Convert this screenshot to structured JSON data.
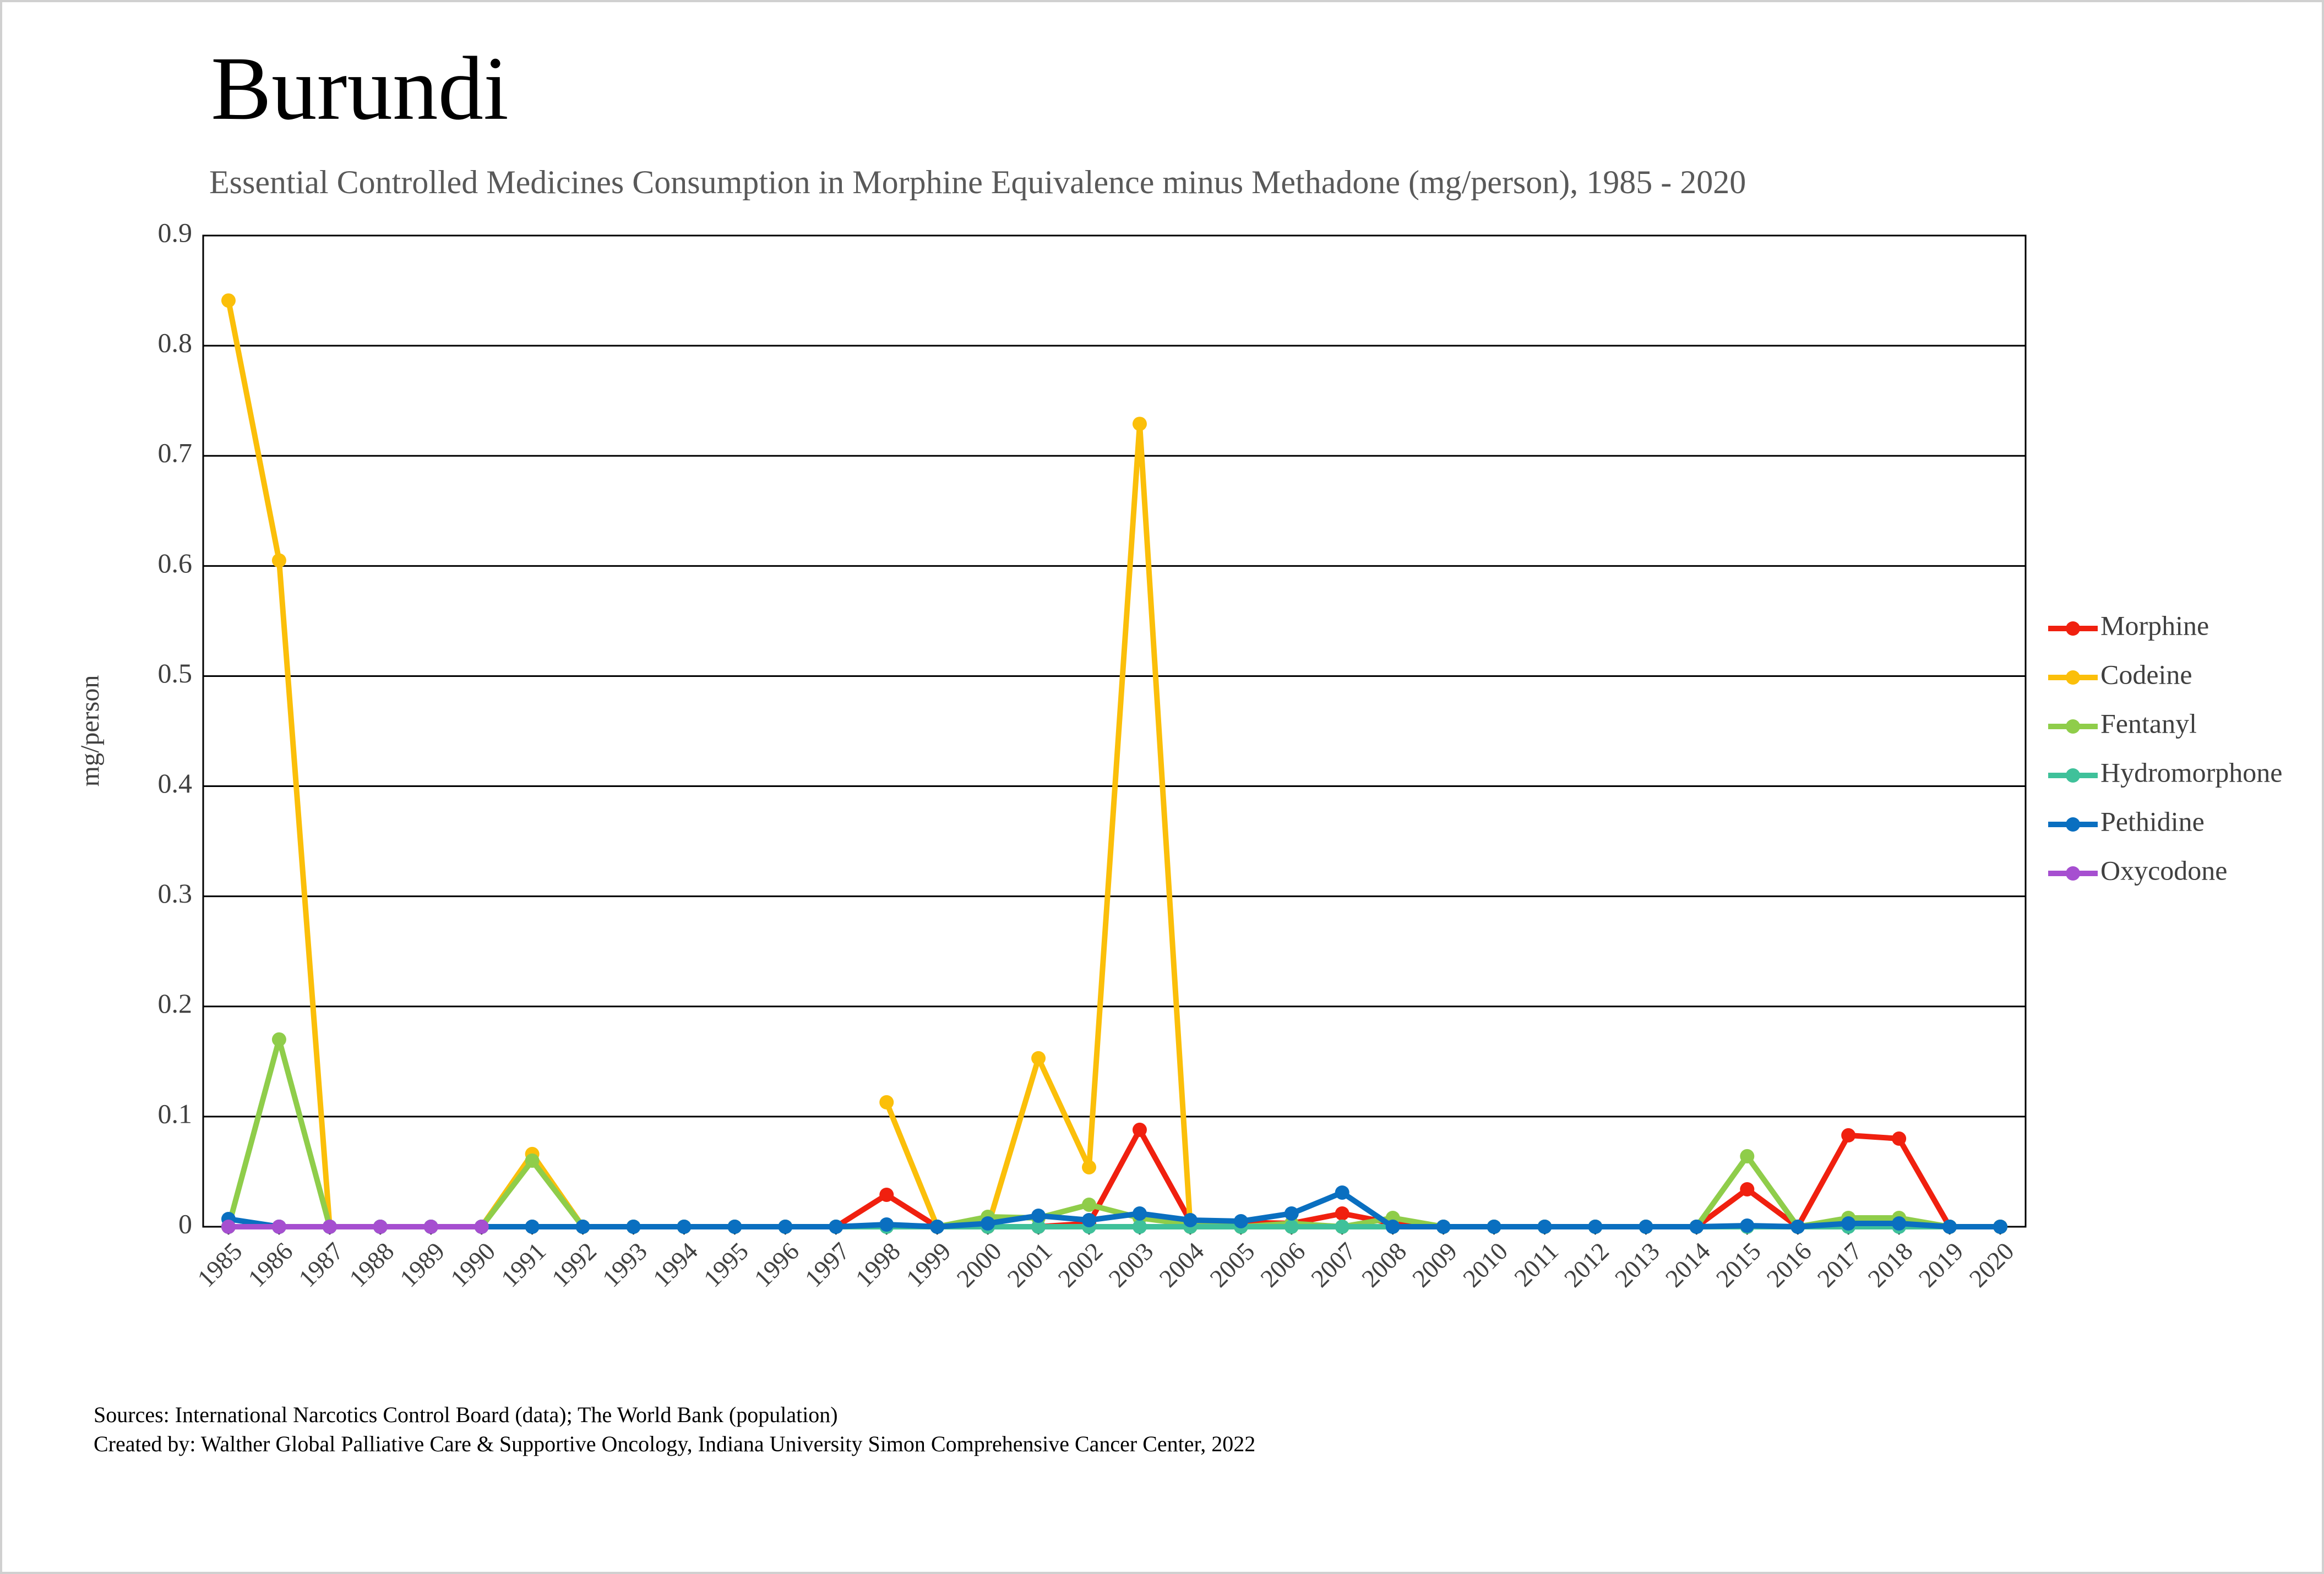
{
  "chart_data": {
    "type": "line",
    "title": "Burundi",
    "subtitle": "Essential Controlled Medicines Consumption in Morphine Equivalence minus Methadone (mg/person), 1985 - 2020",
    "y_label": "mg/person",
    "categories": [
      "1985",
      "1986",
      "1987",
      "1988",
      "1989",
      "1990",
      "1991",
      "1992",
      "1993",
      "1994",
      "1995",
      "1996",
      "1997",
      "1998",
      "1999",
      "2000",
      "2001",
      "2002",
      "2003",
      "2004",
      "2005",
      "2006",
      "2007",
      "2008",
      "2009",
      "2010",
      "2011",
      "2012",
      "2013",
      "2014",
      "2015",
      "2016",
      "2017",
      "2018",
      "2019",
      "2020"
    ],
    "series": [
      {
        "name": "Morphine",
        "color": "#f0200f",
        "values": [
          0,
          0,
          0,
          0,
          0,
          0,
          0,
          0,
          0,
          0,
          0,
          0,
          0,
          0.029,
          0,
          0,
          0,
          0.003,
          0.088,
          0.005,
          0.004,
          0.003,
          0.012,
          0.003,
          0,
          0,
          0,
          0,
          0,
          0,
          0.034,
          0,
          0.083,
          0.08,
          0,
          0
        ]
      },
      {
        "name": "Codeine",
        "color": "#fbbf0a",
        "values": [
          0.841,
          0.605,
          0,
          0,
          0,
          0,
          0.066,
          0,
          null,
          null,
          null,
          null,
          null,
          0.113,
          0,
          0,
          0.153,
          0.054,
          0.729,
          0,
          0,
          0,
          0,
          0,
          0,
          0,
          0,
          0,
          0,
          0,
          0,
          0,
          0.001,
          0.001,
          0,
          0
        ]
      },
      {
        "name": "Fentanyl",
        "color": "#8fcd4a",
        "values": [
          0,
          0.17,
          0,
          0,
          0,
          0,
          0.06,
          0,
          0,
          0,
          0,
          0,
          0,
          0,
          0,
          0.009,
          0.008,
          0.02,
          0.008,
          0.002,
          0,
          0.003,
          0,
          0.008,
          0,
          0,
          0,
          0,
          0,
          0,
          0.064,
          0,
          0.008,
          0.008,
          0,
          0
        ]
      },
      {
        "name": "Hydromorphone",
        "color": "#3fc19a",
        "values": [
          0,
          0,
          0,
          0,
          0,
          0,
          0,
          0,
          0,
          0,
          0,
          0,
          0,
          0,
          0,
          0,
          0,
          0,
          0,
          0,
          0,
          0,
          0,
          0,
          0,
          0,
          0,
          0,
          0,
          0,
          0,
          0,
          0,
          0,
          0,
          0
        ]
      },
      {
        "name": "Pethidine",
        "color": "#0a6fc0",
        "values": [
          0.007,
          0,
          0,
          0,
          0,
          0,
          0,
          0,
          0,
          0,
          0,
          0,
          0,
          0.002,
          0,
          0.003,
          0.01,
          0.006,
          0.012,
          0.006,
          0.005,
          0.012,
          0.031,
          0,
          0,
          0,
          0,
          0,
          0,
          0,
          0.001,
          0,
          0.003,
          0.003,
          0,
          0
        ]
      },
      {
        "name": "Oxycodone",
        "color": "#a64fd0",
        "values": [
          0,
          0,
          0,
          0,
          0,
          0,
          null,
          null,
          null,
          null,
          null,
          null,
          null,
          null,
          null,
          null,
          null,
          null,
          null,
          null,
          null,
          null,
          null,
          null,
          null,
          null,
          null,
          null,
          null,
          null,
          null,
          null,
          null,
          null,
          null,
          null
        ]
      }
    ],
    "ylim": [
      0,
      0.9
    ],
    "yticks": [
      0,
      0.1,
      0.2,
      0.3,
      0.4,
      0.5,
      0.6,
      0.7,
      0.8,
      0.9
    ],
    "grid": true,
    "legend": "right",
    "notes": [
      "Sources: International Narcotics Control Board (data); The World Bank (population)",
      "Created by: Walther Global Palliative Care & Supportive Oncology, Indiana University Simon Comprehensive Cancer Center, 2022"
    ]
  }
}
